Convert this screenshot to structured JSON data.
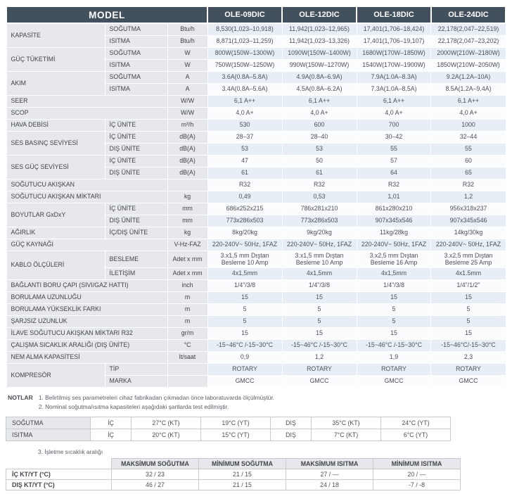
{
  "colors": {
    "header_bg": "#43505e",
    "label_bg": "#e6e8eb",
    "row_stripe_bg": "#e8eef5",
    "border": "#c6cbd0"
  },
  "header": {
    "model_label": "MODEL",
    "models": [
      "OLE-09DIC",
      "OLE-12DIC",
      "OLE-18DIC",
      "OLE-24DIC"
    ]
  },
  "spec_table": {
    "rows": [
      {
        "label": "KAPASİTE",
        "label_rowspan": 2,
        "sub": "SOĞUTMA",
        "unit": "Btu/h",
        "values": [
          "8,530(1,023–10,918)",
          "11,942(1,023–12,965)",
          "17,401(1,706–18,424)",
          "22,178(2,047–22,519)"
        ]
      },
      {
        "sub": "ISITMA",
        "unit": "Btu/h",
        "values": [
          "8,871(1,023–11,259)",
          "11,942(1,023–13,326)",
          "17,401(1,706–19,107)",
          "22,178(2,047–23,202)"
        ]
      },
      {
        "label": "GÜÇ TÜKETİMİ",
        "label_rowspan": 2,
        "sub": "SOĞUTMA",
        "unit": "W",
        "values": [
          "800W(150W–1300W)",
          "1090W(150W–1400W)",
          "1680W(170W–1850W)",
          "2000W(210W–2180W)"
        ]
      },
      {
        "sub": "ISITMA",
        "unit": "W",
        "values": [
          "750W(150W–1250W)",
          "990W(150W–1270W)",
          "1540W(170W–1900W)",
          "1850W(210W–2050W)"
        ]
      },
      {
        "label": "AKIM",
        "label_rowspan": 2,
        "sub": "SOĞUTMA",
        "unit": "A",
        "values": [
          "3.6A(0.8A–5.8A)",
          "4.9A(0.8A–6.9A)",
          "7.9A(1.0A–8.3A)",
          "9.2A(1.2A–10A)"
        ]
      },
      {
        "sub": "ISITMA",
        "unit": "A",
        "values": [
          "3.4A(0.8A–5.6A)",
          "4.5A(0.8A–6.2A)",
          "7.3A(1.0A–8.5A)",
          "8.5A(1.2A–9.4A)"
        ]
      },
      {
        "label": "SEER",
        "label_colspan": 2,
        "unit": "W/W",
        "values": [
          "6,1 A++",
          "6,1 A++",
          "6,1 A++",
          "6,1 A++"
        ]
      },
      {
        "label": "SCOP",
        "label_colspan": 2,
        "unit": "W/W",
        "values": [
          "4,0 A+",
          "4,0 A+",
          "4,0 A+",
          "4,0 A+"
        ]
      },
      {
        "label": "HAVA DEBİSİ",
        "sub": "İÇ ÜNİTE",
        "unit": "m³/h",
        "values": [
          "530",
          "600",
          "700",
          "1000"
        ]
      },
      {
        "label": "SES BASINÇ SEVİYESİ",
        "label_rowspan": 2,
        "sub": "İÇ ÜNİTE",
        "unit": "dB(A)",
        "values": [
          "28–37",
          "28–40",
          "30–42",
          "32–44"
        ]
      },
      {
        "sub": "DIŞ ÜNİTE",
        "unit": "dB(A)",
        "values": [
          "53",
          "53",
          "55",
          "55"
        ]
      },
      {
        "label": "SES GÜÇ SEVİYESİ",
        "label_rowspan": 2,
        "sub": "İÇ ÜNİTE",
        "unit": "dB(A)",
        "values": [
          "47",
          "50",
          "57",
          "60"
        ]
      },
      {
        "sub": "DIŞ ÜNİTE",
        "unit": "dB(A)",
        "values": [
          "61",
          "61",
          "64",
          "65"
        ]
      },
      {
        "label": "SOĞUTUCU AKIŞKAN",
        "label_colspan": 2,
        "unit": "",
        "values": [
          "R32",
          "R32",
          "R32",
          "R32"
        ]
      },
      {
        "label": "SOĞUTUCU AKIŞKAN MİKTARI",
        "label_colspan": 2,
        "unit": "kg",
        "values": [
          "0,49",
          "0,53",
          "1,01",
          "1,2"
        ]
      },
      {
        "label": "BOYUTLAR GxDxY",
        "label_rowspan": 2,
        "sub": "İÇ ÜNİTE",
        "unit": "mm",
        "values": [
          "686x252x215",
          "786x281x210",
          "861x280x210",
          "956x318x237"
        ]
      },
      {
        "sub": "DIŞ ÜNİTE",
        "unit": "mm",
        "values": [
          "773x286x503",
          "773x286x503",
          "907x345x546",
          "907x345x546"
        ]
      },
      {
        "label": "AĞIRLIK",
        "sub": "İÇ/DIŞ ÜNİTE",
        "unit": "kg",
        "values": [
          "8kg/20kg",
          "9kg/20kg",
          "11kg/28kg",
          "14kg/30kg"
        ]
      },
      {
        "label": "GÜÇ KAYNAĞI",
        "label_colspan": 2,
        "unit": "V-Hz-FAZ",
        "values": [
          "220-240V~ 50Hz, 1FAZ",
          "220-240V~ 50Hz, 1FAZ",
          "220-240V~ 50Hz, 1FAZ",
          "220-240V~ 50Hz, 1FAZ"
        ]
      },
      {
        "label": "KABLO ÖLÇÜLERİ",
        "label_rowspan": 2,
        "sub": "BESLEME",
        "unit": "Adet x mm",
        "values": [
          "3.x1,5 mm Dıştan\nBesleme 10 Amp",
          "3.x1,5 mm Dıştan\nBesleme 10 Amp",
          "3.x2,5 mm Dıştan\nBesleme 16 Amp",
          "3.x2,5 mm Dıştan\nBesleme 25 Amp"
        ]
      },
      {
        "sub": "İLETİŞİM",
        "unit": "Adet x mm",
        "values": [
          "4x1,5mm",
          "4x1,5mm",
          "4x1,5mm",
          "4x1.5mm"
        ]
      },
      {
        "label": "BAĞLANTI BORU ÇAPI (SIVI/GAZ HATTI)",
        "label_colspan": 2,
        "unit": "inch",
        "values": [
          "1/4\"/3/8",
          "1/4\"/3/8",
          "1/4\"/3/8",
          "1/4\"/1/2\""
        ]
      },
      {
        "label": "BORULAMA UZUNLUĞU",
        "label_colspan": 2,
        "unit": "m",
        "values": [
          "15",
          "15",
          "15",
          "15"
        ]
      },
      {
        "label": "BORULAMA YÜKSEKLİK FARKI",
        "label_colspan": 2,
        "unit": "m",
        "values": [
          "5",
          "5",
          "5",
          "5"
        ]
      },
      {
        "label": "ŞARJSIZ UZUNLUK",
        "label_colspan": 2,
        "unit": "m",
        "values": [
          "5",
          "5",
          "5",
          "5"
        ]
      },
      {
        "label": "İLAVE SOĞUTUCU AKIŞKAN MİKTARI R32",
        "label_colspan": 2,
        "unit": "gr/m",
        "values": [
          "15",
          "15",
          "15",
          "15"
        ]
      },
      {
        "label": "ÇALIŞMA SICAKLIK ARALIĞI (DIŞ ÜNİTE)",
        "label_colspan": 2,
        "unit": "°C",
        "values": [
          "-15~46°C /-15~30°C",
          "-15~46°C /-15~30°C",
          "-15~46°C /-15~30°C",
          "-15~46°C/-15~30°C"
        ]
      },
      {
        "label": "NEM ALMA KAPASİTESİ",
        "label_colspan": 2,
        "unit": "lt/saat",
        "values": [
          "0,9",
          "1,2",
          "1,9",
          "2,3"
        ]
      },
      {
        "label": "KOMPRESÖR",
        "label_rowspan": 2,
        "sub": "TİP",
        "unit": "",
        "values": [
          "ROTARY",
          "ROTARY",
          "ROTARY",
          "ROTARY"
        ]
      },
      {
        "sub": "MARKA",
        "unit": "",
        "values": [
          "GMCC",
          "GMCC",
          "GMCC",
          "GMCC"
        ]
      }
    ]
  },
  "notes": {
    "label": "NOTLAR",
    "items": [
      "1. Belirtilmiş ses parametreleri cihaz fabrikadan çıkmadan önce laboratuvarda ölçülmüştür.",
      "2. Nominal soğutma/ısıtma kapasiteleri aşağıdaki şartlarda test edilmiştir."
    ],
    "note3": "3. İşletme sıcaklık aralığı"
  },
  "test_conditions": {
    "rows": [
      {
        "mode": "SOĞUTMA",
        "indoor_label": "İÇ",
        "indoor": [
          "27°C (KT)",
          "19°C (YT)"
        ],
        "outdoor_label": "DIŞ",
        "outdoor": [
          "35°C (KT)",
          "24°C (YT)"
        ]
      },
      {
        "mode": "ISITMA",
        "indoor_label": "İÇ",
        "indoor": [
          "20°C (KT)",
          "15°C (YT)"
        ],
        "outdoor_label": "DIŞ",
        "outdoor": [
          "7°C (KT)",
          "6°C (YT)"
        ]
      }
    ]
  },
  "operating_range": {
    "headers": [
      "MAKSİMUM SOĞUTMA",
      "MİNİMUM SOĞUTMA",
      "MAKSİMUM ISITMA",
      "MİNİMUM ISITMA"
    ],
    "rows": [
      {
        "label": "İÇ KT/YT (°C)",
        "values": [
          "32 / 23",
          "21 / 15",
          "27 / —",
          "20 / —"
        ]
      },
      {
        "label": "DIŞ KT/YT (°C)",
        "values": [
          "46 / 27",
          "21 / 15",
          "24 / 18",
          "-7 / -8"
        ]
      }
    ]
  }
}
